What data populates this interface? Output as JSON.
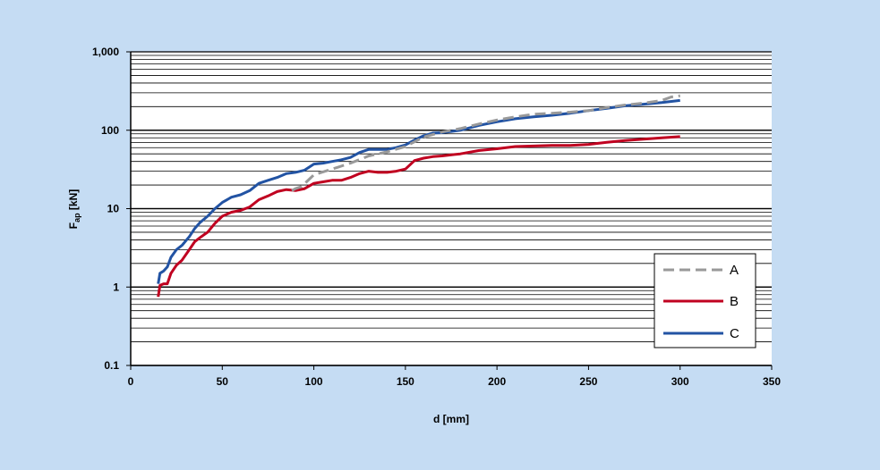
{
  "page": {
    "background": "#c5dcf3",
    "plot_background": "#ffffff"
  },
  "chart_data": {
    "type": "line",
    "title": "",
    "xlabel": "d [mm]",
    "ylabel_main": "F",
    "ylabel_sub": "ap",
    "ylabel_unit": " [kN]",
    "xlim": [
      0,
      350
    ],
    "ylim": [
      0.1,
      1000
    ],
    "yscale": "log",
    "xticks": [
      0,
      50,
      100,
      150,
      200,
      250,
      300,
      350
    ],
    "xtick_labels": [
      "0",
      "50",
      "100",
      "150",
      "200",
      "250",
      "300",
      "350"
    ],
    "yticks": [
      0.1,
      1,
      10,
      100,
      1000
    ],
    "ytick_labels": [
      "0.1",
      "1",
      "10",
      "100",
      "1,000"
    ],
    "grid": {
      "horizontal_major": true,
      "horizontal_minor": true,
      "vertical": false,
      "color": "#000000"
    },
    "legend": {
      "position": "bottom-right",
      "entries": [
        "A",
        "B",
        "C"
      ]
    },
    "series": [
      {
        "name": "A",
        "color": "#999999",
        "dash": "dashed",
        "x": [
          88,
          90,
          93,
          96,
          100,
          110,
          120,
          130,
          140,
          150,
          160,
          170,
          180,
          190,
          200,
          210,
          220,
          230,
          240,
          250,
          260,
          270,
          280,
          290,
          295,
          300
        ],
        "y": [
          17,
          18,
          19,
          22,
          27,
          32,
          38,
          47,
          53,
          62,
          82,
          95,
          105,
          120,
          135,
          148,
          160,
          165,
          170,
          178,
          195,
          210,
          222,
          240,
          265,
          275
        ]
      },
      {
        "name": "B",
        "color": "#c00020",
        "dash": "solid",
        "x": [
          15,
          16,
          18,
          20,
          22,
          25,
          28,
          32,
          35,
          38,
          42,
          46,
          50,
          55,
          60,
          65,
          70,
          75,
          80,
          85,
          90,
          95,
          100,
          105,
          110,
          115,
          120,
          125,
          130,
          135,
          140,
          145,
          150,
          155,
          160,
          165,
          170,
          180,
          190,
          200,
          210,
          220,
          230,
          240,
          250,
          260,
          270,
          280,
          290,
          300
        ],
        "y": [
          0.75,
          1.05,
          1.1,
          1.1,
          1.5,
          1.9,
          2.2,
          3.0,
          3.8,
          4.3,
          5.0,
          6.5,
          8.0,
          9.0,
          9.5,
          10.5,
          13,
          14.5,
          16.5,
          17.5,
          17,
          18,
          21,
          22,
          23,
          23,
          25,
          28,
          30,
          29,
          29,
          30,
          32,
          41,
          44,
          46,
          47,
          50,
          55,
          58,
          62,
          63,
          64,
          64,
          66,
          70,
          74,
          77,
          80,
          83
        ]
      },
      {
        "name": "C",
        "color": "#2253a3",
        "dash": "solid",
        "x": [
          15,
          16,
          18,
          20,
          22,
          25,
          28,
          32,
          35,
          38,
          42,
          46,
          50,
          55,
          60,
          65,
          70,
          75,
          80,
          85,
          90,
          95,
          100,
          105,
          110,
          115,
          120,
          125,
          130,
          135,
          140,
          145,
          150,
          155,
          160,
          165,
          170,
          180,
          190,
          200,
          210,
          220,
          230,
          240,
          250,
          260,
          270,
          280,
          290,
          300
        ],
        "y": [
          1.1,
          1.5,
          1.6,
          1.8,
          2.4,
          3.0,
          3.4,
          4.4,
          5.6,
          6.7,
          8.0,
          10,
          12,
          14,
          15,
          17,
          21,
          23,
          25,
          28,
          29,
          31,
          37,
          38,
          40,
          42,
          45,
          52,
          57,
          57,
          57,
          60,
          65,
          75,
          85,
          92,
          93,
          100,
          115,
          128,
          140,
          148,
          155,
          165,
          178,
          190,
          205,
          215,
          225,
          240
        ]
      }
    ]
  }
}
